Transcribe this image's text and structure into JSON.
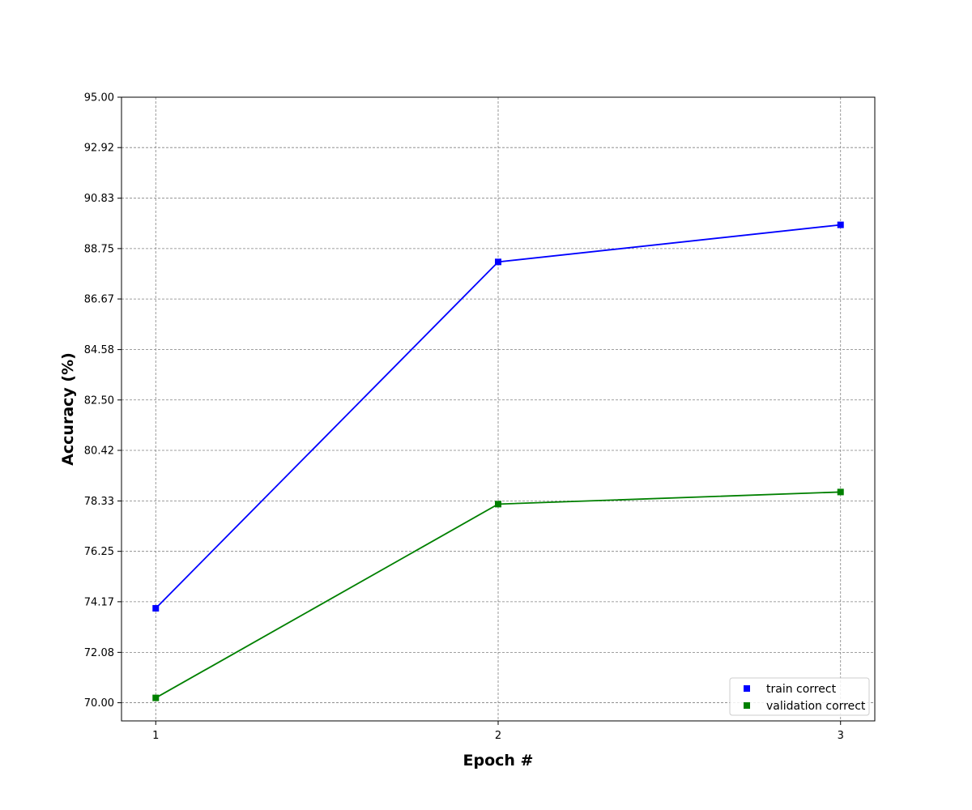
{
  "chart_data": {
    "type": "line",
    "title": "",
    "xlabel": "Epoch #",
    "ylabel": "Accuracy (%)",
    "x": [
      1,
      2,
      3
    ],
    "x_tick_labels": [
      "1",
      "2",
      "3"
    ],
    "xlim": [
      0.9,
      3.1
    ],
    "ylim": [
      69.25,
      95.0
    ],
    "y_ticks": [
      70.0,
      72.08,
      74.17,
      76.25,
      78.33,
      80.42,
      82.5,
      84.58,
      86.67,
      88.75,
      90.83,
      92.92,
      95.0
    ],
    "y_tick_labels": [
      "70.00",
      "72.08",
      "74.17",
      "76.25",
      "78.33",
      "80.42",
      "82.50",
      "84.58",
      "86.67",
      "88.75",
      "90.83",
      "92.92",
      "95.00"
    ],
    "grid": true,
    "legend_position": "lower-right",
    "marker": "square",
    "series": [
      {
        "name": "train correct",
        "color": "#0000ff",
        "values": [
          73.9,
          88.2,
          89.73
        ]
      },
      {
        "name": "validation correct",
        "color": "#008000",
        "values": [
          70.2,
          78.2,
          78.7
        ]
      }
    ]
  }
}
